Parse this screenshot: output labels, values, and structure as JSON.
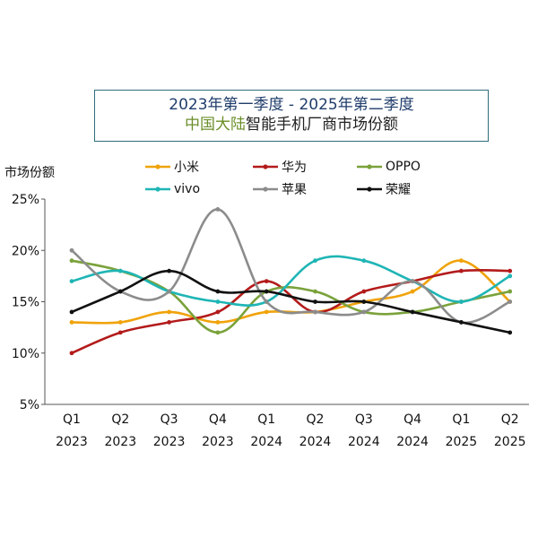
{
  "chart_data": {
    "type": "line",
    "title_line1": "2023年第一季度 - 2025年第二季度",
    "title_line2_highlight": "中国大陆",
    "title_line2_rest": "智能手机厂商市场份额",
    "ylabel": "市场份额",
    "categories": [
      [
        "Q1",
        "2023"
      ],
      [
        "Q2",
        "2023"
      ],
      [
        "Q3",
        "2023"
      ],
      [
        "Q4",
        "2023"
      ],
      [
        "Q1",
        "2024"
      ],
      [
        "Q2",
        "2024"
      ],
      [
        "Q3",
        "2024"
      ],
      [
        "Q4",
        "2024"
      ],
      [
        "Q1",
        "2025"
      ],
      [
        "Q2",
        "2025"
      ]
    ],
    "ylim": [
      5,
      25
    ],
    "yticks": [
      25,
      20,
      15,
      10,
      5
    ],
    "ytick_labels": [
      "25%",
      "20%",
      "15%",
      "10%",
      "5%"
    ],
    "grid": false,
    "legend_placement": "top",
    "series": [
      {
        "name": "小米",
        "color": "#f0a30a",
        "values": [
          13,
          13,
          14,
          13,
          14,
          14,
          15,
          16,
          19,
          15
        ]
      },
      {
        "name": "华为",
        "color": "#b31b1b",
        "values": [
          10,
          12,
          13,
          14,
          17,
          14,
          16,
          17,
          18,
          18
        ]
      },
      {
        "name": "OPPO",
        "color": "#7aa23b",
        "values": [
          19,
          18,
          16,
          12,
          16,
          16,
          14,
          14,
          15,
          16
        ]
      },
      {
        "name": "vivo",
        "color": "#1fb5b5",
        "values": [
          17,
          18,
          16,
          15,
          15,
          19,
          19,
          17,
          15,
          17.5
        ]
      },
      {
        "name": "苹果",
        "color": "#8c8c8c",
        "values": [
          20,
          16,
          16,
          24,
          15,
          14,
          14,
          17,
          13,
          15
        ]
      },
      {
        "name": "荣耀",
        "color": "#111111",
        "values": [
          14,
          16,
          18,
          16,
          16,
          15,
          15,
          14,
          13,
          12
        ]
      }
    ]
  }
}
